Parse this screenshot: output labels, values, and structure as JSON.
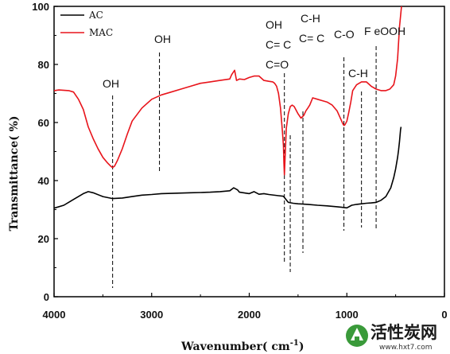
{
  "chart_data": {
    "type": "line",
    "xlabel": "Wavenumber( cm",
    "xlabel_sup": "-1",
    "xlabel_close": ")",
    "ylabel": "Transmittance(  %)",
    "xlim": [
      4000,
      0
    ],
    "ylim": [
      0,
      100
    ],
    "xticks": [
      4000,
      3000,
      2000,
      1000,
      0
    ],
    "yticks": [
      0,
      20,
      40,
      60,
      80,
      100
    ],
    "grid": false,
    "legend_position": "top-left",
    "series": [
      {
        "name": "AC",
        "color": "#000000",
        "x": [
          4000,
          3900,
          3800,
          3700,
          3650,
          3600,
          3500,
          3400,
          3300,
          3200,
          3100,
          3000,
          2900,
          2800,
          2700,
          2600,
          2500,
          2400,
          2300,
          2200,
          2160,
          2120,
          2100,
          2000,
          1950,
          1900,
          1850,
          1800,
          1700,
          1650,
          1600,
          1550,
          1500,
          1400,
          1300,
          1200,
          1100,
          1050,
          1000,
          950,
          900,
          850,
          800,
          750,
          700,
          650,
          600,
          550,
          520,
          500,
          480,
          470,
          460,
          450,
          445
        ],
        "y": [
          30.5,
          31.5,
          33.5,
          35.5,
          36.2,
          35.8,
          34.5,
          33.8,
          34.0,
          34.5,
          35.0,
          35.2,
          35.5,
          35.6,
          35.7,
          35.8,
          35.9,
          36.0,
          36.2,
          36.5,
          37.5,
          36.8,
          36.0,
          35.5,
          36.2,
          35.3,
          35.5,
          35.2,
          34.8,
          34.6,
          32.5,
          32.2,
          32.0,
          31.8,
          31.5,
          31.3,
          31.0,
          30.8,
          30.6,
          31.5,
          31.8,
          32.0,
          32.2,
          32.3,
          32.5,
          33.2,
          34.5,
          37.5,
          41.0,
          44.0,
          48.0,
          50.5,
          53.5,
          57.5,
          58.5
        ]
      },
      {
        "name": "MAC",
        "color": "#e8141b",
        "x": [
          4000,
          3950,
          3850,
          3800,
          3750,
          3700,
          3650,
          3600,
          3550,
          3500,
          3450,
          3420,
          3400,
          3380,
          3350,
          3300,
          3250,
          3200,
          3100,
          3000,
          2900,
          2800,
          2700,
          2600,
          2500,
          2400,
          2300,
          2200,
          2180,
          2150,
          2130,
          2100,
          2050,
          2000,
          1950,
          1900,
          1850,
          1800,
          1760,
          1740,
          1720,
          1700,
          1680,
          1660,
          1650,
          1645,
          1640,
          1630,
          1620,
          1600,
          1580,
          1560,
          1540,
          1500,
          1470,
          1440,
          1420,
          1400,
          1380,
          1350,
          1300,
          1250,
          1200,
          1150,
          1100,
          1060,
          1040,
          1030,
          1020,
          1000,
          980,
          960,
          940,
          900,
          850,
          800,
          750,
          700,
          650,
          600,
          560,
          520,
          500,
          480,
          460,
          440
        ],
        "y": [
          71.0,
          71.2,
          71.0,
          70.5,
          68.0,
          64.5,
          58.5,
          54.5,
          51.0,
          48.0,
          46.0,
          45.0,
          44.5,
          45.0,
          47.0,
          51.0,
          56.0,
          60.5,
          65.0,
          68.0,
          69.5,
          70.5,
          71.5,
          72.5,
          73.5,
          74.0,
          74.5,
          75.0,
          76.5,
          78.0,
          74.5,
          75.0,
          74.8,
          75.5,
          76.0,
          76.0,
          74.5,
          74.2,
          74.0,
          73.5,
          72.5,
          70.0,
          65.0,
          57.0,
          52.0,
          46.0,
          42.0,
          50.0,
          58.0,
          63.0,
          65.5,
          66.0,
          65.5,
          63.0,
          61.5,
          62.5,
          64.0,
          65.0,
          66.0,
          68.5,
          68.0,
          67.5,
          67.0,
          66.0,
          64.0,
          61.0,
          59.5,
          59.0,
          59.2,
          60.5,
          63.5,
          67.0,
          71.0,
          73.0,
          74.0,
          74.0,
          72.5,
          71.5,
          71.0,
          71.0,
          71.5,
          73.0,
          76.0,
          82.0,
          93.0,
          100.0
        ]
      }
    ],
    "annotations": [
      {
        "text": "OH",
        "x": 3400
      },
      {
        "text": "OH",
        "x": 2920
      },
      {
        "text": "OH",
        "x": 1640
      },
      {
        "text": "C= C",
        "x": 1640
      },
      {
        "text": "C=O",
        "x": 1640
      },
      {
        "text": "C-H",
        "x": 1450
      },
      {
        "text": "C= C",
        "x": 1450
      },
      {
        "text": "C-O",
        "x": 1030
      },
      {
        "text": "C-H",
        "x": 850
      },
      {
        "text": "F eOOH",
        "x": 700
      }
    ],
    "guides": [
      3400,
      2920,
      1640,
      1580,
      1450,
      1030,
      850,
      700
    ]
  },
  "watermark": {
    "text": "活性炭网",
    "url": "www.hxt7.com"
  }
}
